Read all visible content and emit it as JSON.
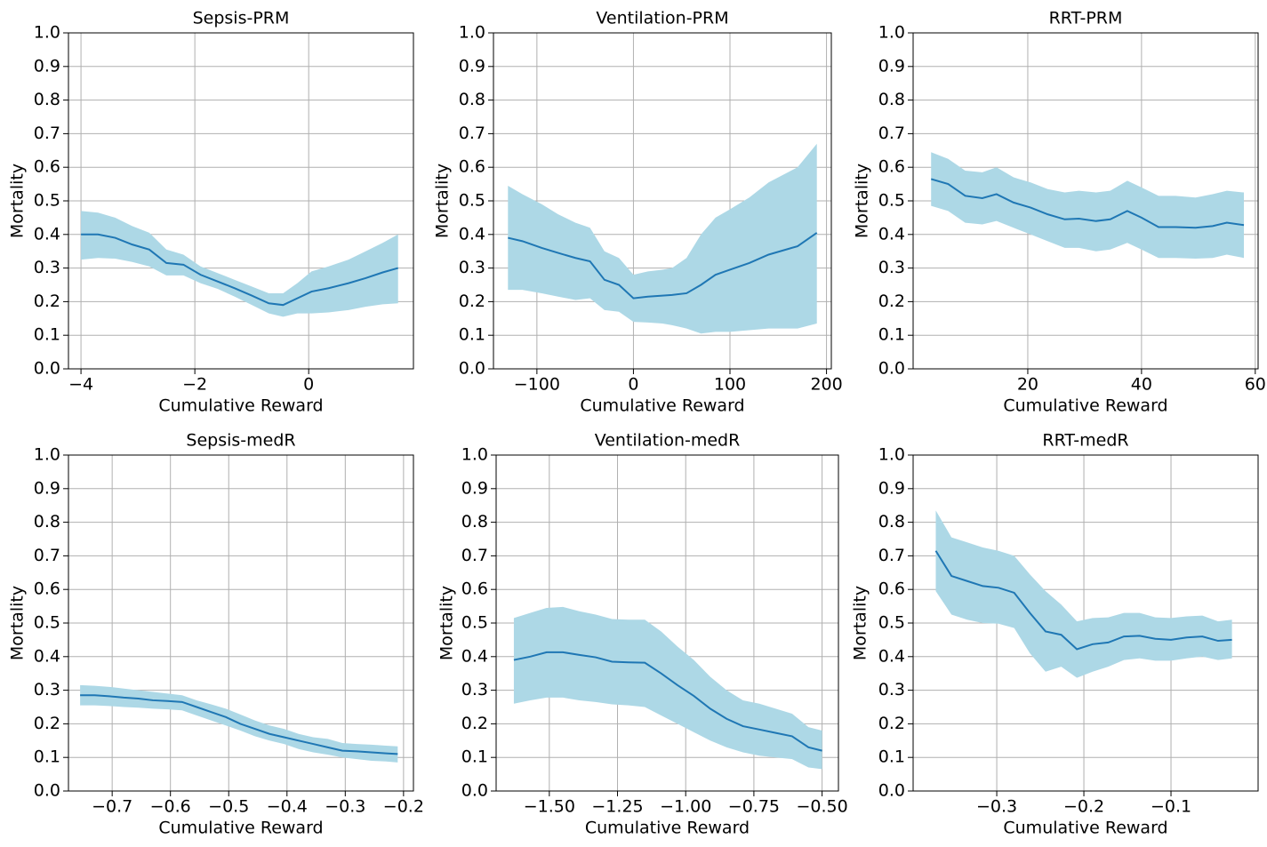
{
  "chart_data": [
    {
      "type": "line",
      "title": "Sepsis-PRM",
      "xlabel": "Cumulative Reward",
      "ylabel": "Mortality",
      "grid": true,
      "xlim": [
        -4.22,
        1.84
      ],
      "ylim": [
        0,
        1
      ],
      "xticks": [
        {
          "value": -4,
          "label": "−4"
        },
        {
          "value": -2,
          "label": "−2"
        },
        0
      ],
      "yticks": [
        {
          "value": 0,
          "label": "0.0"
        },
        0.1,
        0.2,
        0.3,
        0.4,
        0.5,
        0.6,
        0.7,
        0.8,
        0.9,
        {
          "value": 1,
          "label": "1.0"
        }
      ],
      "x": [
        -4.0,
        -3.7,
        -3.4,
        -3.1,
        -2.8,
        -2.5,
        -2.2,
        -1.9,
        -1.6,
        -1.3,
        -1.0,
        -0.7,
        -0.45,
        -0.2,
        0.05,
        0.35,
        0.7,
        1.0,
        1.3,
        1.57
      ],
      "series": [
        {
          "color": "#1f77b4",
          "values": [
            0.4,
            0.4,
            0.39,
            0.37,
            0.355,
            0.315,
            0.31,
            0.28,
            0.26,
            0.24,
            0.218,
            0.195,
            0.19,
            0.21,
            0.23,
            0.24,
            0.255,
            0.27,
            0.287,
            0.3
          ]
        }
      ],
      "band": {
        "color": "#add8e6",
        "lower": [
          0.325,
          0.33,
          0.328,
          0.318,
          0.305,
          0.278,
          0.278,
          0.255,
          0.238,
          0.215,
          0.19,
          0.165,
          0.155,
          0.165,
          0.165,
          0.168,
          0.175,
          0.185,
          0.192,
          0.195
        ],
        "upper": [
          0.47,
          0.465,
          0.45,
          0.425,
          0.405,
          0.355,
          0.34,
          0.305,
          0.285,
          0.265,
          0.245,
          0.225,
          0.225,
          0.255,
          0.29,
          0.305,
          0.325,
          0.35,
          0.375,
          0.4
        ]
      }
    },
    {
      "type": "line",
      "title": "Ventilation-PRM",
      "xlabel": "Cumulative Reward",
      "ylabel": "Mortality",
      "grid": true,
      "xlim": [
        -145,
        205
      ],
      "ylim": [
        0,
        1
      ],
      "xticks": [
        {
          "value": -100,
          "label": "−100"
        },
        0,
        100,
        200
      ],
      "yticks": [
        {
          "value": 0,
          "label": "0.0"
        },
        0.1,
        0.2,
        0.3,
        0.4,
        0.5,
        0.6,
        0.7,
        0.8,
        0.9,
        {
          "value": 1,
          "label": "1.0"
        }
      ],
      "x": [
        -130,
        -115,
        -95,
        -78,
        -60,
        -45,
        -30,
        -15,
        0,
        15,
        30,
        40,
        55,
        70,
        85,
        100,
        120,
        140,
        170,
        190
      ],
      "series": [
        {
          "color": "#1f77b4",
          "values": [
            0.39,
            0.38,
            0.36,
            0.345,
            0.33,
            0.32,
            0.265,
            0.25,
            0.21,
            0.215,
            0.218,
            0.22,
            0.225,
            0.25,
            0.28,
            0.295,
            0.315,
            0.34,
            0.365,
            0.405
          ]
        }
      ],
      "band": {
        "color": "#add8e6",
        "lower": [
          0.235,
          0.235,
          0.225,
          0.215,
          0.205,
          0.21,
          0.175,
          0.17,
          0.14,
          0.138,
          0.135,
          0.13,
          0.12,
          0.105,
          0.11,
          0.11,
          0.115,
          0.12,
          0.12,
          0.135
        ],
        "upper": [
          0.545,
          0.52,
          0.49,
          0.46,
          0.435,
          0.42,
          0.35,
          0.33,
          0.28,
          0.29,
          0.295,
          0.3,
          0.33,
          0.4,
          0.45,
          0.475,
          0.51,
          0.555,
          0.6,
          0.67
        ]
      }
    },
    {
      "type": "line",
      "title": "RRT-PRM",
      "xlabel": "Cumulative Reward",
      "ylabel": "Mortality",
      "grid": true,
      "xlim": [
        -0.16,
        60.5
      ],
      "ylim": [
        0,
        1
      ],
      "xticks": [
        20,
        40,
        60
      ],
      "yticks": [
        {
          "value": 0,
          "label": "0.0"
        },
        0.1,
        0.2,
        0.3,
        0.4,
        0.5,
        0.6,
        0.7,
        0.8,
        0.9,
        {
          "value": 1,
          "label": "1.0"
        }
      ],
      "x": [
        3,
        6,
        9,
        12,
        14.5,
        17.5,
        20.5,
        23.5,
        26.5,
        29,
        32,
        34.5,
        37.5,
        40,
        43,
        46,
        49.5,
        52.5,
        55,
        58
      ],
      "series": [
        {
          "color": "#1f77b4",
          "values": [
            0.565,
            0.55,
            0.515,
            0.508,
            0.52,
            0.495,
            0.48,
            0.46,
            0.445,
            0.447,
            0.44,
            0.445,
            0.47,
            0.45,
            0.422,
            0.422,
            0.42,
            0.425,
            0.435,
            0.428
          ]
        }
      ],
      "band": {
        "color": "#add8e6",
        "lower": [
          0.485,
          0.47,
          0.435,
          0.43,
          0.44,
          0.42,
          0.4,
          0.38,
          0.36,
          0.36,
          0.35,
          0.355,
          0.375,
          0.355,
          0.33,
          0.33,
          0.328,
          0.33,
          0.34,
          0.33
        ],
        "upper": [
          0.645,
          0.625,
          0.59,
          0.585,
          0.6,
          0.57,
          0.555,
          0.535,
          0.525,
          0.53,
          0.525,
          0.53,
          0.56,
          0.54,
          0.515,
          0.515,
          0.51,
          0.52,
          0.53,
          0.525
        ]
      }
    },
    {
      "type": "line",
      "title": "Sepsis-medR",
      "xlabel": "Cumulative Reward",
      "ylabel": "Mortality",
      "grid": true,
      "xlim": [
        -0.775,
        -0.183
      ],
      "ylim": [
        0,
        1
      ],
      "xticks": [
        {
          "value": -0.7,
          "label": "−0.7"
        },
        {
          "value": -0.6,
          "label": "−0.6"
        },
        {
          "value": -0.5,
          "label": "−0.5"
        },
        {
          "value": -0.4,
          "label": "−0.4"
        },
        {
          "value": -0.3,
          "label": "−0.3"
        },
        {
          "value": -0.2,
          "label": "−0.2"
        }
      ],
      "yticks": [
        {
          "value": 0,
          "label": "0.0"
        },
        0.1,
        0.2,
        0.3,
        0.4,
        0.5,
        0.6,
        0.7,
        0.8,
        0.9,
        {
          "value": 1,
          "label": "1.0"
        }
      ],
      "x": [
        -0.755,
        -0.73,
        -0.705,
        -0.68,
        -0.655,
        -0.63,
        -0.605,
        -0.58,
        -0.555,
        -0.53,
        -0.505,
        -0.48,
        -0.455,
        -0.43,
        -0.405,
        -0.38,
        -0.355,
        -0.33,
        -0.305,
        -0.28,
        -0.255,
        -0.23,
        -0.21
      ],
      "series": [
        {
          "color": "#1f77b4",
          "values": [
            0.285,
            0.285,
            0.282,
            0.278,
            0.275,
            0.27,
            0.268,
            0.265,
            0.25,
            0.235,
            0.22,
            0.2,
            0.185,
            0.17,
            0.16,
            0.15,
            0.14,
            0.13,
            0.12,
            0.118,
            0.115,
            0.112,
            0.11
          ]
        }
      ],
      "band": {
        "color": "#add8e6",
        "lower": [
          0.255,
          0.255,
          0.253,
          0.25,
          0.248,
          0.245,
          0.243,
          0.24,
          0.225,
          0.21,
          0.195,
          0.18,
          0.163,
          0.15,
          0.14,
          0.125,
          0.115,
          0.108,
          0.1,
          0.095,
          0.09,
          0.088,
          0.085
        ],
        "upper": [
          0.315,
          0.313,
          0.31,
          0.305,
          0.3,
          0.295,
          0.29,
          0.285,
          0.27,
          0.258,
          0.245,
          0.228,
          0.21,
          0.195,
          0.185,
          0.17,
          0.16,
          0.155,
          0.143,
          0.14,
          0.138,
          0.135,
          0.133
        ]
      }
    },
    {
      "type": "line",
      "title": "Ventilation-medR",
      "xlabel": "Cumulative Reward",
      "ylabel": "Mortality",
      "grid": true,
      "xlim": [
        -1.695,
        -0.44
      ],
      "ylim": [
        0,
        1
      ],
      "xticks": [
        {
          "value": -1.5,
          "label": "−1.50"
        },
        {
          "value": -1.25,
          "label": "−1.25"
        },
        {
          "value": -1.0,
          "label": "−1.00"
        },
        {
          "value": -0.75,
          "label": "−0.75"
        },
        {
          "value": -0.5,
          "label": "−0.50"
        }
      ],
      "yticks": [
        {
          "value": 0,
          "label": "0.0"
        },
        0.1,
        0.2,
        0.3,
        0.4,
        0.5,
        0.6,
        0.7,
        0.8,
        0.9,
        {
          "value": 1,
          "label": "1.0"
        }
      ],
      "x": [
        -1.63,
        -1.57,
        -1.51,
        -1.45,
        -1.39,
        -1.33,
        -1.27,
        -1.21,
        -1.15,
        -1.09,
        -1.03,
        -0.97,
        -0.91,
        -0.85,
        -0.79,
        -0.73,
        -0.67,
        -0.61,
        -0.55,
        -0.5
      ],
      "series": [
        {
          "color": "#1f77b4",
          "values": [
            0.39,
            0.4,
            0.413,
            0.413,
            0.405,
            0.398,
            0.385,
            0.383,
            0.382,
            0.35,
            0.315,
            0.283,
            0.245,
            0.215,
            0.193,
            0.183,
            0.173,
            0.163,
            0.13,
            0.12
          ]
        }
      ],
      "band": {
        "color": "#add8e6",
        "lower": [
          0.26,
          0.27,
          0.278,
          0.278,
          0.27,
          0.265,
          0.258,
          0.255,
          0.25,
          0.225,
          0.2,
          0.175,
          0.15,
          0.13,
          0.115,
          0.105,
          0.1,
          0.095,
          0.07,
          0.065
        ],
        "upper": [
          0.515,
          0.53,
          0.545,
          0.548,
          0.535,
          0.525,
          0.512,
          0.51,
          0.51,
          0.475,
          0.43,
          0.39,
          0.34,
          0.3,
          0.27,
          0.26,
          0.245,
          0.23,
          0.19,
          0.18
        ]
      }
    },
    {
      "type": "line",
      "title": "RRT-medR",
      "xlabel": "Cumulative Reward",
      "ylabel": "Mortality",
      "grid": true,
      "xlim": [
        -0.396,
        0.0
      ],
      "ylim": [
        0,
        1
      ],
      "xticks": [
        {
          "value": -0.3,
          "label": "−0.3"
        },
        {
          "value": -0.2,
          "label": "−0.2"
        },
        {
          "value": -0.1,
          "label": "−0.1"
        }
      ],
      "yticks": [
        {
          "value": 0,
          "label": "0.0"
        },
        0.1,
        0.2,
        0.3,
        0.4,
        0.5,
        0.6,
        0.7,
        0.8,
        0.9,
        {
          "value": 1,
          "label": "1.0"
        }
      ],
      "x": [
        -0.37,
        -0.352,
        -0.334,
        -0.316,
        -0.298,
        -0.28,
        -0.262,
        -0.244,
        -0.226,
        -0.208,
        -0.19,
        -0.172,
        -0.154,
        -0.136,
        -0.118,
        -0.1,
        -0.082,
        -0.064,
        -0.046,
        -0.03
      ],
      "series": [
        {
          "color": "#1f77b4",
          "values": [
            0.715,
            0.64,
            0.625,
            0.61,
            0.605,
            0.59,
            0.53,
            0.475,
            0.465,
            0.422,
            0.437,
            0.442,
            0.46,
            0.462,
            0.453,
            0.45,
            0.457,
            0.46,
            0.447,
            0.45
          ]
        }
      ],
      "band": {
        "color": "#add8e6",
        "lower": [
          0.595,
          0.525,
          0.51,
          0.5,
          0.498,
          0.485,
          0.41,
          0.355,
          0.37,
          0.337,
          0.355,
          0.37,
          0.39,
          0.395,
          0.388,
          0.388,
          0.395,
          0.4,
          0.39,
          0.395
        ],
        "upper": [
          0.835,
          0.755,
          0.74,
          0.725,
          0.715,
          0.7,
          0.645,
          0.595,
          0.555,
          0.505,
          0.515,
          0.517,
          0.53,
          0.53,
          0.517,
          0.515,
          0.52,
          0.522,
          0.505,
          0.51
        ]
      }
    }
  ]
}
